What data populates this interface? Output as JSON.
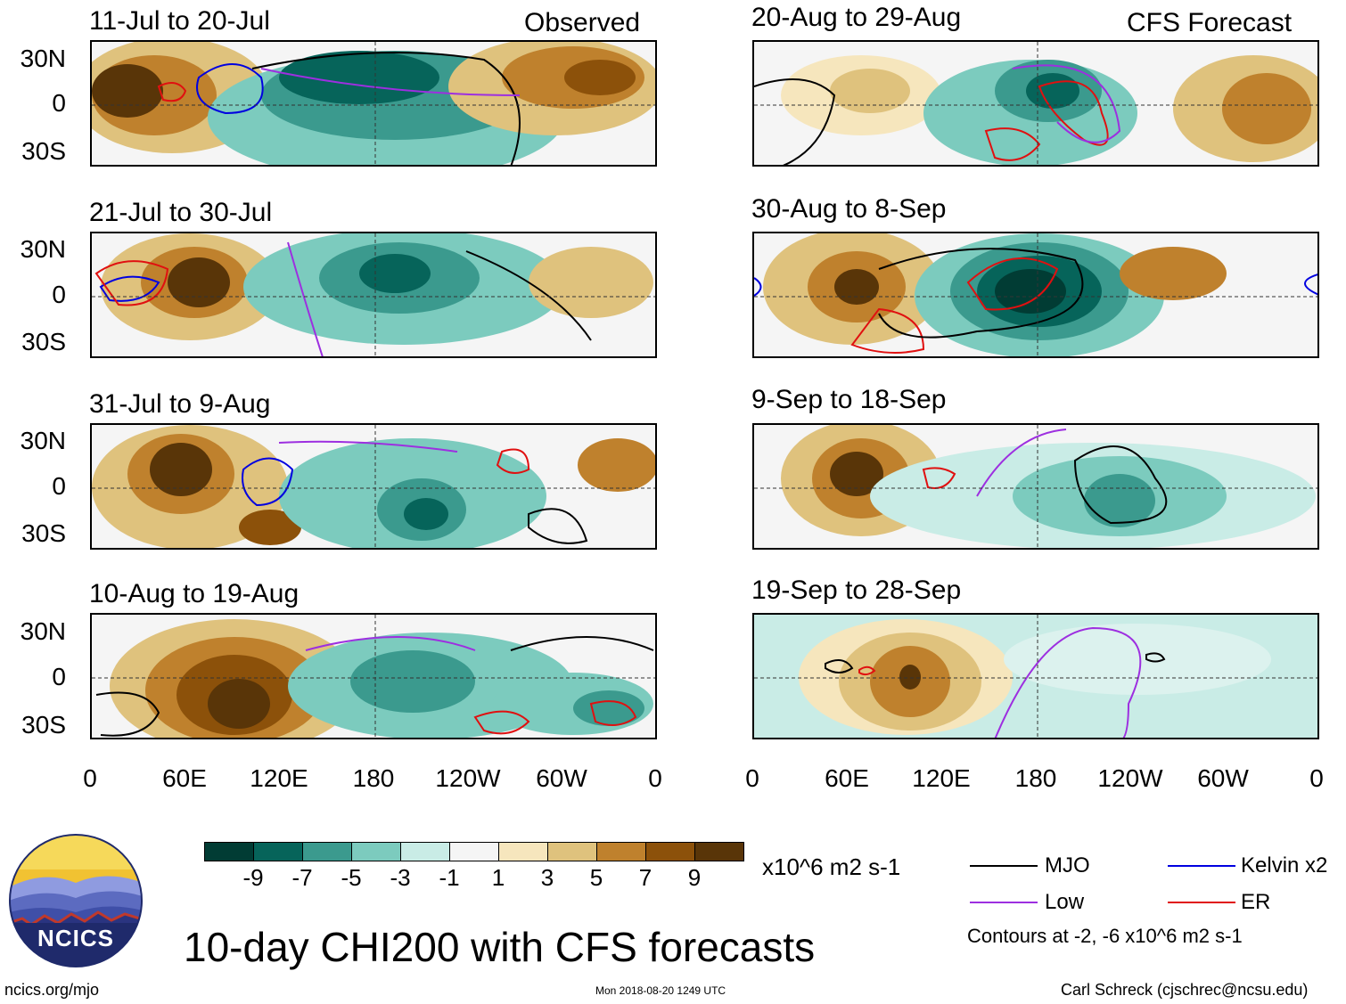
{
  "colors": {
    "scale": [
      "#013c34",
      "#06645a",
      "#3b9a8e",
      "#7ccbbe",
      "#c9ece6",
      "#f5f5f5",
      "#f6e6bd",
      "#dfc27d",
      "#bf812d",
      "#8c510a",
      "#593508"
    ],
    "mjo": "#000000",
    "kelvin": "#0000e0",
    "low": "#9d2fe0",
    "er": "#e01010",
    "land": "#707070"
  },
  "axes": {
    "lat_labels": [
      "30N",
      "0",
      "30S"
    ],
    "lon_labels": [
      "0",
      "60E",
      "120E",
      "180",
      "120W",
      "60W",
      "0"
    ]
  },
  "observed": {
    "header": "Observed",
    "panels": [
      {
        "date": "11-Jul to 20-Jul"
      },
      {
        "date": "21-Jul to 30-Jul"
      },
      {
        "date": "31-Jul to 9-Aug"
      },
      {
        "date": "10-Aug to 19-Aug"
      }
    ]
  },
  "forecast": {
    "header": "CFS Forecast",
    "panels": [
      {
        "date": "20-Aug to 29-Aug"
      },
      {
        "date": "30-Aug to 8-Sep"
      },
      {
        "date": "9-Sep to 18-Sep"
      },
      {
        "date": "19-Sep to 28-Sep"
      }
    ]
  },
  "colorbar": {
    "labels": [
      "-9",
      "-7",
      "-5",
      "-3",
      "-1",
      "1",
      "3",
      "5",
      "7",
      "9"
    ],
    "units": "x10^6 m2 s-1"
  },
  "legend": {
    "mjo": "MJO",
    "kelvin": "Kelvin x2",
    "low": "Low",
    "er": "ER",
    "contours": "Contours at -2, -6 x10^6 m2 s-1"
  },
  "title": "10-day CHI200 with CFS forecasts",
  "logo_text": "NCICS",
  "footer": {
    "url": "ncics.org/mjo",
    "timestamp": "Mon 2018-08-20 1249 UTC",
    "author": "Carl Schreck (cjschrec@ncsu.edu)"
  }
}
